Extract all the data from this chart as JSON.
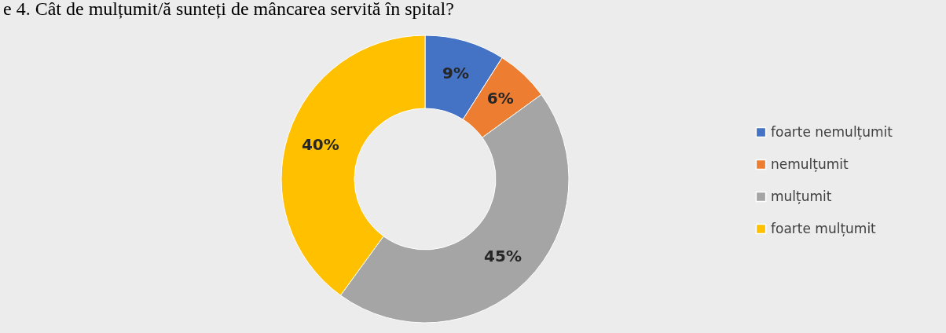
{
  "chart_data": {
    "type": "donut",
    "title": "e 4. Cât de mulțumit/ă sunteți de mâncarea servită în spital?",
    "categories": [
      "foarte nemulțumit",
      "nemulțumit",
      "mulțumit",
      "foarte mulțumit"
    ],
    "values": [
      9,
      6,
      45,
      40
    ],
    "colors": [
      "#4472c4",
      "#ed7d31",
      "#a5a5a5",
      "#ffc000"
    ],
    "value_labels": [
      "9%",
      "6%",
      "45%",
      "40%"
    ],
    "legend": "right"
  }
}
